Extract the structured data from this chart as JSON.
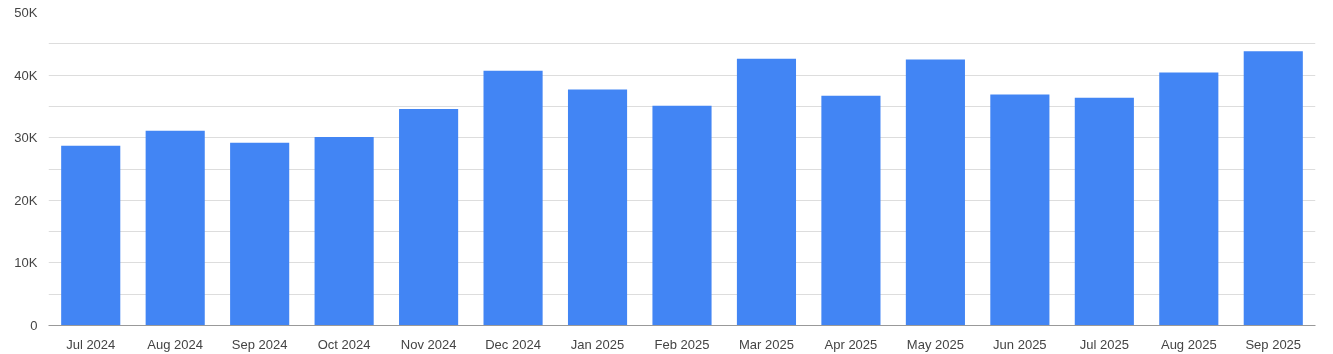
{
  "chart_data": {
    "type": "bar",
    "categories": [
      "Jul 2024",
      "Aug 2024",
      "Sep 2024",
      "Oct 2024",
      "Nov 2024",
      "Dec 2024",
      "Jan 2025",
      "Feb 2025",
      "Mar 2025",
      "Apr 2025",
      "May 2025",
      "Jun 2025",
      "Jul 2025",
      "Aug 2025",
      "Sep 2025"
    ],
    "values": [
      28700,
      31100,
      29200,
      30100,
      34600,
      40700,
      37700,
      35100,
      42600,
      36700,
      42500,
      36900,
      36400,
      40400,
      43800
    ],
    "color": "#4285f4",
    "ylim": [
      0,
      50000
    ],
    "yticks": [
      0,
      {
        "value": 5000,
        "label": null
      },
      {
        "value": 10000,
        "label": "10K"
      },
      {
        "value": 15000,
        "label": null
      },
      {
        "value": 20000,
        "label": "20K"
      },
      {
        "value": 25000,
        "label": null
      },
      {
        "value": 30000,
        "label": "30K"
      },
      {
        "value": 35000,
        "label": null
      },
      {
        "value": 40000,
        "label": "40K"
      },
      {
        "value": 45000,
        "label": null
      },
      {
        "value": 50000,
        "label": "50K"
      }
    ],
    "grid": "y"
  }
}
